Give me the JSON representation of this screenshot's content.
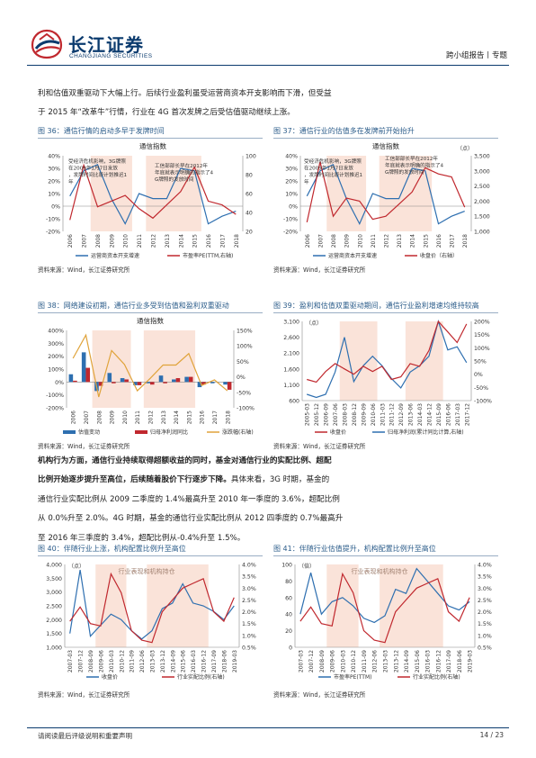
{
  "header": {
    "logo_cn": "长江证券",
    "logo_en": "CHANGJIANG SECURITIES",
    "report_type": "跨小组报告丨专题"
  },
  "intro": {
    "line1": "利和估值双重驱动下大幅上行。后续行业盈利虽受运营商资本开支影响而下滑，但受益",
    "line2": "于 2015 年“改革牛”行情，行业在 4G 首次发牌之后受估值驱动继续上涨。"
  },
  "fig36": {
    "caption": "图 36：通信行情的启动多早于发牌时间",
    "title": "通信指数",
    "annotation1": "受经济危机影响，3G牌照在2009年1月7日发放，发牌时间比原计划推迟1年",
    "annotation2": "工信部部长早在2012年年底就表示明确的指示了4G牌照的发放时间",
    "legend": [
      "运营商资本开支增速",
      "市盈率PE(TTM,右轴)"
    ],
    "source": "资料来源：Wind，长江证券研究所"
  },
  "fig37": {
    "caption": "图 37：通信行业的估值多在发牌前开始抬升",
    "title": "通信指数",
    "unit_right": "（点）",
    "annotation1": "受经济危机影响，3G牌照在2009年1月7日发放，发牌时间比原计划推迟1年",
    "annotation2": "工信部部长早在2012年年底就表示明确的指示了4G牌照的发放时间",
    "legend": [
      "运营商资本开支增速",
      "收盘价（右轴）"
    ],
    "source": "资料来源：Wind，长江证券研究所"
  },
  "fig38": {
    "caption": "图 38：网络建设初期，通信行业多受到估值和盈利双重驱动",
    "title": "通信指数",
    "legend": [
      "估值变动",
      "归母净利润同比",
      "涨跌幅(右轴)"
    ],
    "source": "资料来源：Wind，长江证券研究所"
  },
  "fig39": {
    "caption": "图 39：盈利和估值双重驱动期间，通信行业盈利增速均维持较高",
    "unit_left": "（点）",
    "legend": [
      "收盘价",
      "归母净利润(累计同比计算,右轴)"
    ],
    "source": "资料来源：Wind，长江证券研究所"
  },
  "body_para": {
    "line1_bold": "机构行为方面，通信行业持续取得超额收益的同时，基金对通信行业的实配比例、超配",
    "line2_bold": "比例开始逐步提升至高位，后续随着股价下行逐步下降。",
    "line2_rest": "具体来看，3G 时期，基金的",
    "line3": "通信行业实配比例从 2009 二季度的 1.4%最高升至 2010 年一季度的 3.6%，超配比例",
    "line4": "从 0.0%升至 2.0%。4G 时期，基金的通信行业实配比例从 2012 四季度的 0.7%最高升",
    "line5": "至 2016 年三季度的 3.4%，超配比例从-0.4%升至 1.5%。"
  },
  "fig40": {
    "caption": "图 40：伴随行业上涨，机构配置比例升至高位",
    "unit_left": "（点）",
    "shade_label": "行业表现和机构持仓",
    "legend": [
      "收盘价",
      "行业实配比例(右轴)"
    ],
    "source": "资料来源：Wind，长江证券研究所"
  },
  "fig41": {
    "caption": "图 41：伴随行业估值提升，机构配置比例升至高位",
    "unit_left": "（倍）",
    "shade_label": "行业表现和机构持仓",
    "legend": [
      "市盈率PE(TTM)",
      "行业实配比例(右轴)"
    ],
    "source": "资料来源：Wind，长江证券研究所"
  },
  "footer": {
    "disclaimer": "请阅读最后评级说明和重要声明",
    "page": "14 / 23"
  },
  "chart_data": [
    {
      "type": "line",
      "title": "通信指数",
      "categories": [
        "2006",
        "2007",
        "2008",
        "2009",
        "2010",
        "2011",
        "2012",
        "2013",
        "2014",
        "2015",
        "2016",
        "2017",
        "2018"
      ],
      "ylim": [
        -20,
        40
      ],
      "y2lim": [
        20,
        100
      ],
      "series": [
        {
          "name": "运营商资本开支增速",
          "values": [
            8,
            28,
            33,
            6,
            -14,
            10,
            6,
            6,
            30,
            28,
            -14,
            -8,
            -4
          ]
        },
        {
          "name": "市盈率PE(TTM,右轴)",
          "values": [
            32,
            90,
            46,
            52,
            58,
            44,
            34,
            48,
            62,
            88,
            52,
            48,
            38
          ]
        }
      ],
      "shaded": [
        [
          "2008",
          "2010"
        ],
        [
          "2012",
          "2015"
        ]
      ],
      "colors": {
        "capex": "#2e6fb0",
        "pe": "#c0282e",
        "shade": "#f9e6dd"
      }
    },
    {
      "type": "line",
      "title": "通信指数",
      "categories": [
        "2006",
        "2007",
        "2008",
        "2009",
        "2010",
        "2011",
        "2012",
        "2013",
        "2014",
        "2015",
        "2016",
        "2017",
        "2018"
      ],
      "ylim": [
        -20,
        40
      ],
      "y2lim": [
        1000,
        3500
      ],
      "series": [
        {
          "name": "运营商资本开支增速",
          "values": [
            8,
            28,
            33,
            6,
            -14,
            10,
            6,
            6,
            30,
            28,
            -14,
            -8,
            -4
          ]
        },
        {
          "name": "收盘价（右轴）",
          "values": [
            1300,
            3300,
            1500,
            2100,
            2000,
            1400,
            1500,
            1900,
            2300,
            3100,
            2900,
            2800,
            1800
          ]
        }
      ],
      "shaded": [
        [
          "2008",
          "2010"
        ],
        [
          "2012",
          "2015"
        ]
      ]
    },
    {
      "type": "bar",
      "title": "通信指数",
      "categories": [
        "2006",
        "2007",
        "2008",
        "2009",
        "2010",
        "2011",
        "2012",
        "2013",
        "2014",
        "2015",
        "2016",
        "2017",
        "2018"
      ],
      "ylim": [
        -200,
        400
      ],
      "y2lim": [
        -100,
        150
      ],
      "series": [
        {
          "name": "估值变动",
          "values": [
            60,
            230,
            -70,
            70,
            30,
            -25,
            -10,
            50,
            20,
            40,
            -40,
            -10,
            -20
          ]
        },
        {
          "name": "归母净利润同比",
          "values": [
            10,
            110,
            -30,
            -10,
            20,
            -25,
            -20,
            -10,
            30,
            40,
            -20,
            0,
            -60
          ]
        },
        {
          "name": "涨跌幅(右轴)",
          "values": [
            60,
            135,
            -65,
            85,
            40,
            -45,
            -5,
            38,
            38,
            75,
            -28,
            -10,
            -45
          ]
        }
      ],
      "shaded": [
        [
          "2008",
          "2010"
        ],
        [
          "2012",
          "2015"
        ]
      ]
    },
    {
      "type": "line",
      "categories": [
        "2005-03",
        "2005-12",
        "2006-09",
        "2007-06",
        "2008-03",
        "2008-12",
        "2009-09",
        "2010-06",
        "2011-03",
        "2011-12",
        "2012-09",
        "2013-06",
        "2014-03",
        "2014-12",
        "2015-09",
        "2016-06",
        "2017-03",
        "2017-12"
      ],
      "ylim": [
        600,
        3100
      ],
      "y2lim": [
        -100,
        200
      ],
      "series": [
        {
          "name": "收盘价",
          "values": [
            800,
            700,
            800,
            1500,
            2600,
            1200,
            1700,
            2000,
            1700,
            1300,
            1000,
            1500,
            1700,
            2000,
            3100,
            2200,
            2300,
            1800
          ]
        },
        {
          "name": "归母净利润(累计同比计算,右轴)",
          "values": [
            -20,
            -30,
            10,
            40,
            20,
            0,
            30,
            10,
            30,
            -20,
            -10,
            40,
            30,
            90,
            200,
            160,
            120,
            190
          ]
        }
      ],
      "shaded": [
        [
          "2008-03",
          "2010-06"
        ],
        [
          "2013-06",
          "2015-09"
        ]
      ]
    },
    {
      "type": "line",
      "categories": [
        "2007-03",
        "2007-12",
        "2008-09",
        "2009-06",
        "2010-03",
        "2010-12",
        "2011-09",
        "2012-06",
        "2013-03",
        "2013-12",
        "2014-09",
        "2015-06",
        "2016-03",
        "2016-12",
        "2017-09",
        "2018-06",
        "2019-03"
      ],
      "ylim": [
        1000,
        4000
      ],
      "y2lim": [
        0.5,
        4.0
      ],
      "series": [
        {
          "name": "收盘价",
          "values": [
            1500,
            3800,
            1400,
            1800,
            2200,
            2000,
            1600,
            1300,
            1600,
            2400,
            2600,
            3300,
            2600,
            2500,
            2300,
            2000,
            2500
          ]
        },
        {
          "name": "行业实配比例(右轴)",
          "values": [
            1.6,
            2.2,
            1.5,
            1.4,
            3.6,
            2.8,
            1.2,
            0.8,
            0.7,
            2.0,
            2.5,
            3.0,
            3.2,
            3.4,
            2.0,
            1.6,
            2.6
          ]
        }
      ],
      "shaded": [
        [
          "2009-06",
          "2010-12"
        ],
        [
          "2013-03",
          "2016-12"
        ]
      ]
    },
    {
      "type": "line",
      "categories": [
        "2007-03",
        "2007-12",
        "2008-09",
        "2009-06",
        "2010-03",
        "2010-12",
        "2011-09",
        "2012-06",
        "2013-03",
        "2013-12",
        "2014-09",
        "2015-06",
        "2016-03",
        "2016-12",
        "2017-09",
        "2018-06",
        "2019-03"
      ],
      "ylim": [
        0,
        100
      ],
      "y2lim": [
        0.5,
        4.0
      ],
      "series": [
        {
          "name": "市盈率PE(TTM)",
          "values": [
            40,
            90,
            40,
            55,
            60,
            50,
            35,
            30,
            38,
            70,
            65,
            95,
            80,
            65,
            50,
            45,
            55
          ]
        },
        {
          "name": "行业实配比例(右轴)",
          "values": [
            1.6,
            2.2,
            1.5,
            1.4,
            3.6,
            2.8,
            1.2,
            0.8,
            0.7,
            2.0,
            2.5,
            3.0,
            3.2,
            3.4,
            2.0,
            1.6,
            2.6
          ]
        }
      ],
      "shaded": [
        [
          "2009-06",
          "2010-12"
        ],
        [
          "2013-03",
          "2016-12"
        ]
      ]
    }
  ]
}
